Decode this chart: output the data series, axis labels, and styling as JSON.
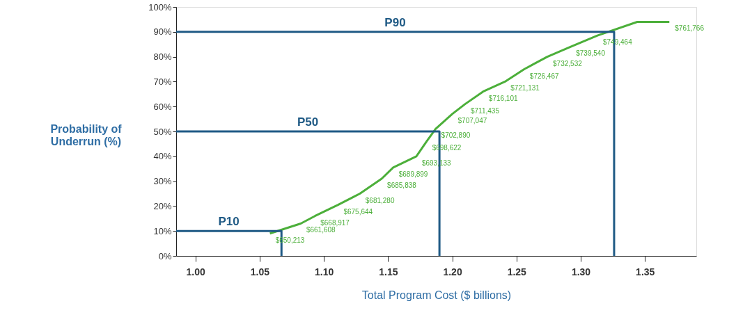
{
  "chart_data": {
    "type": "line",
    "xlabel": "Total Program Cost ($ billions)",
    "ylabel": "Probability of\nUnderrun (%)",
    "xlim": [
      0.985,
      1.39
    ],
    "xticks": [
      {
        "value": 1.0,
        "label": "1.00"
      },
      {
        "value": 1.05,
        "label": "1.05"
      },
      {
        "value": 1.1,
        "label": "1.10"
      },
      {
        "value": 1.15,
        "label": "1.15"
      },
      {
        "value": 1.2,
        "label": "1.20"
      },
      {
        "value": 1.25,
        "label": "1.25"
      },
      {
        "value": 1.3,
        "label": "1.30"
      },
      {
        "value": 1.35,
        "label": "1.35"
      }
    ],
    "ylim": [
      0,
      100
    ],
    "yticks": [
      {
        "value": 0,
        "label": "0%"
      },
      {
        "value": 10,
        "label": "10%"
      },
      {
        "value": 20,
        "label": "20%"
      },
      {
        "value": 30,
        "label": "30%"
      },
      {
        "value": 40,
        "label": "40%"
      },
      {
        "value": 50,
        "label": "50%"
      },
      {
        "value": 60,
        "label": "60%"
      },
      {
        "value": 70,
        "label": "70%"
      },
      {
        "value": 80,
        "label": "80%"
      },
      {
        "value": 90,
        "label": "90%"
      },
      {
        "value": 100,
        "label": "100%"
      }
    ],
    "grid": false,
    "series": [
      {
        "color": "#4caf3a",
        "x": [
          1.058,
          1.082,
          1.093,
          1.111,
          1.128,
          1.145,
          1.154,
          1.172,
          1.18,
          1.187,
          1.2,
          1.21,
          1.224,
          1.241,
          1.256,
          1.274,
          1.292,
          1.313,
          1.344,
          1.369
        ],
        "values": [
          9,
          13,
          16,
          20.5,
          25,
          31,
          35.5,
          40,
          46,
          51,
          57,
          61,
          66,
          70,
          75,
          80,
          84,
          88.5,
          94,
          94
        ]
      },
      {
        "name": "P10",
        "color": "#1f5a85",
        "x": [
          0.985,
          1.067,
          1.067
        ],
        "values": [
          10,
          10,
          0
        ]
      },
      {
        "name": "P50",
        "color": "#1f5a85",
        "x": [
          0.985,
          1.19,
          1.19
        ],
        "values": [
          50,
          50,
          0
        ]
      },
      {
        "name": "P90",
        "color": "#1f5a85",
        "x": [
          0.985,
          1.326,
          1.326
        ],
        "values": [
          90,
          90,
          0
        ]
      }
    ],
    "annotations": [
      {
        "text": "$650,213",
        "x": 1.058,
        "y": 9
      },
      {
        "text": "$661,608",
        "x": 1.082,
        "y": 13
      },
      {
        "text": "$668,917",
        "x": 1.093,
        "y": 16
      },
      {
        "text": "$675,644",
        "x": 1.111,
        "y": 20.5
      },
      {
        "text": "$681,280",
        "x": 1.128,
        "y": 25
      },
      {
        "text": "$685,838",
        "x": 1.145,
        "y": 31
      },
      {
        "text": "$689,899",
        "x": 1.154,
        "y": 35.5
      },
      {
        "text": "$693,133",
        "x": 1.172,
        "y": 40
      },
      {
        "text": "$698,622",
        "x": 1.18,
        "y": 46
      },
      {
        "text": "$702,890",
        "x": 1.187,
        "y": 51
      },
      {
        "text": "$707,047",
        "x": 1.2,
        "y": 57
      },
      {
        "text": "$711,435",
        "x": 1.21,
        "y": 61
      },
      {
        "text": "$716,101",
        "x": 1.224,
        "y": 66
      },
      {
        "text": "$721,131",
        "x": 1.241,
        "y": 70
      },
      {
        "text": "$726,467",
        "x": 1.256,
        "y": 75
      },
      {
        "text": "$732,532",
        "x": 1.274,
        "y": 80
      },
      {
        "text": "$739,540",
        "x": 1.292,
        "y": 84
      },
      {
        "text": "$749,464",
        "x": 1.313,
        "y": 88.5
      },
      {
        "text": "$761,766",
        "x": 1.369,
        "y": 94
      }
    ]
  }
}
